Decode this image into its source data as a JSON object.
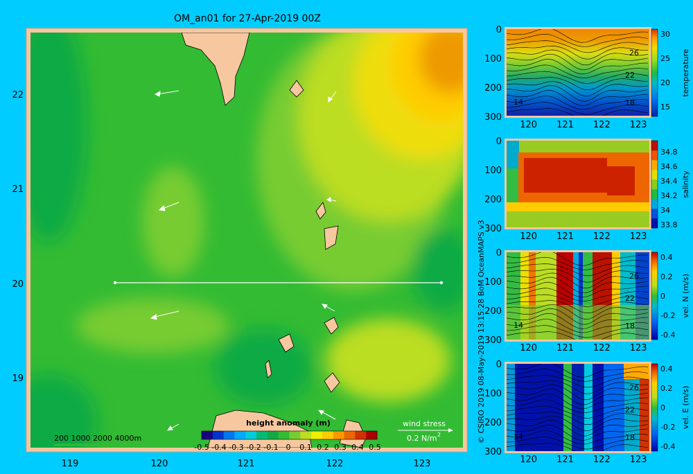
{
  "title": "OM_an01 for 27-Apr-2019 00Z",
  "credit": "© CSIRO 2019  08-May-2019 13:15:28 BoM OceanMAPS v3",
  "colors": {
    "background": "#00ccff",
    "land": "#f7c8a0",
    "frame": "#f7c8a0",
    "ssh_scale": [
      "#1a0080",
      "#0033cc",
      "#0077ee",
      "#00aaff",
      "#00ccdd",
      "#00bb77",
      "#11aa44",
      "#33bb33",
      "#77cc33",
      "#bbdd22",
      "#eeee00",
      "#ffcc00",
      "#ff9900",
      "#ee6600",
      "#cc3300",
      "#aa0000"
    ]
  },
  "map": {
    "x_ticks": [
      "119",
      "120",
      "121",
      "122",
      "123"
    ],
    "y_ticks": [
      "22",
      "21",
      "20",
      "19"
    ],
    "scale_bar": "200  1000  2000  4000m",
    "colorbar_title": "height anomaly (m)",
    "colorbar_ticks": [
      "-0.5",
      "-0.4",
      "-0.3",
      "-0.2",
      "-0.1",
      "0",
      "0.1",
      "0.2",
      "0.3",
      "0.4",
      "0.5"
    ],
    "wind_label": "wind stress",
    "wind_unit": "0.2 N/m",
    "wind_unit_exp": "2"
  },
  "chart_data": [
    {
      "type": "heatmap",
      "title": "OM_an01 for 27-Apr-2019 00Z",
      "variable": "height anomaly (m)",
      "xlim": [
        118.5,
        123.5
      ],
      "ylim": [
        18.3,
        22.7
      ],
      "x_ticks": [
        119,
        120,
        121,
        122,
        123
      ],
      "y_ticks": [
        19,
        20,
        21,
        22
      ],
      "color_range": [
        -0.5,
        0.5
      ],
      "section_line": {
        "lat": 20.0,
        "lon_start": 119.5,
        "lon_end": 123.2
      },
      "wind_vectors": [
        {
          "lon": 120.2,
          "lat": 22.0,
          "dir": "W"
        },
        {
          "lon": 122.2,
          "lat": 21.95,
          "dir": "SW"
        },
        {
          "lon": 120.2,
          "lat": 20.8,
          "dir": "SW"
        },
        {
          "lon": 121.95,
          "lat": 20.85,
          "dir": "W"
        },
        {
          "lon": 120.0,
          "lat": 19.65,
          "dir": "W"
        },
        {
          "lon": 121.95,
          "lat": 19.75,
          "dir": "NW"
        },
        {
          "lon": 120.2,
          "lat": 18.5,
          "dir": "SW"
        },
        {
          "lon": 121.95,
          "lat": 18.6,
          "dir": "NW"
        }
      ]
    },
    {
      "type": "heatmap",
      "variable": "temperature",
      "x_ticks": [
        "120",
        "121",
        "122",
        "123"
      ],
      "y_ticks": [
        "0",
        "100",
        "200",
        "300"
      ],
      "cbar_ticks": [
        "30",
        "25",
        "20",
        "15"
      ],
      "cbar_range": [
        13,
        31
      ],
      "contour_labels": [
        "26",
        "22",
        "18",
        "14"
      ],
      "ylim": [
        0,
        300
      ]
    },
    {
      "type": "heatmap",
      "variable": "salinity",
      "x_ticks": [
        "120",
        "121",
        "122",
        "123"
      ],
      "y_ticks": [
        "0",
        "100",
        "200",
        "300"
      ],
      "cbar_ticks": [
        "34.8",
        "34.6",
        "34.4",
        "34.2",
        "34",
        "33.8"
      ],
      "cbar_range": [
        33.75,
        34.95
      ],
      "ylim": [
        0,
        300
      ]
    },
    {
      "type": "heatmap",
      "variable": "vel. N (m/s)",
      "x_ticks": [
        "120",
        "121",
        "122",
        "123"
      ],
      "y_ticks": [
        "0",
        "100",
        "200",
        "300"
      ],
      "cbar_ticks": [
        "0.4",
        "0.2",
        "0",
        "-0.2",
        "-0.4"
      ],
      "cbar_range": [
        -0.45,
        0.45
      ],
      "contour_labels": [
        "26",
        "22",
        "18",
        "14"
      ],
      "ylim": [
        0,
        300
      ]
    },
    {
      "type": "heatmap",
      "variable": "vel. E (m/s)",
      "x_ticks": [
        "120",
        "121",
        "122",
        "123"
      ],
      "y_ticks": [
        "0",
        "100",
        "200",
        "300"
      ],
      "cbar_ticks": [
        "0.4",
        "0.2",
        "0",
        "-0.2",
        "-0.4"
      ],
      "cbar_range": [
        -0.45,
        0.45
      ],
      "contour_labels": [
        "26",
        "22",
        "18",
        "14"
      ],
      "ylim": [
        0,
        300
      ]
    }
  ]
}
